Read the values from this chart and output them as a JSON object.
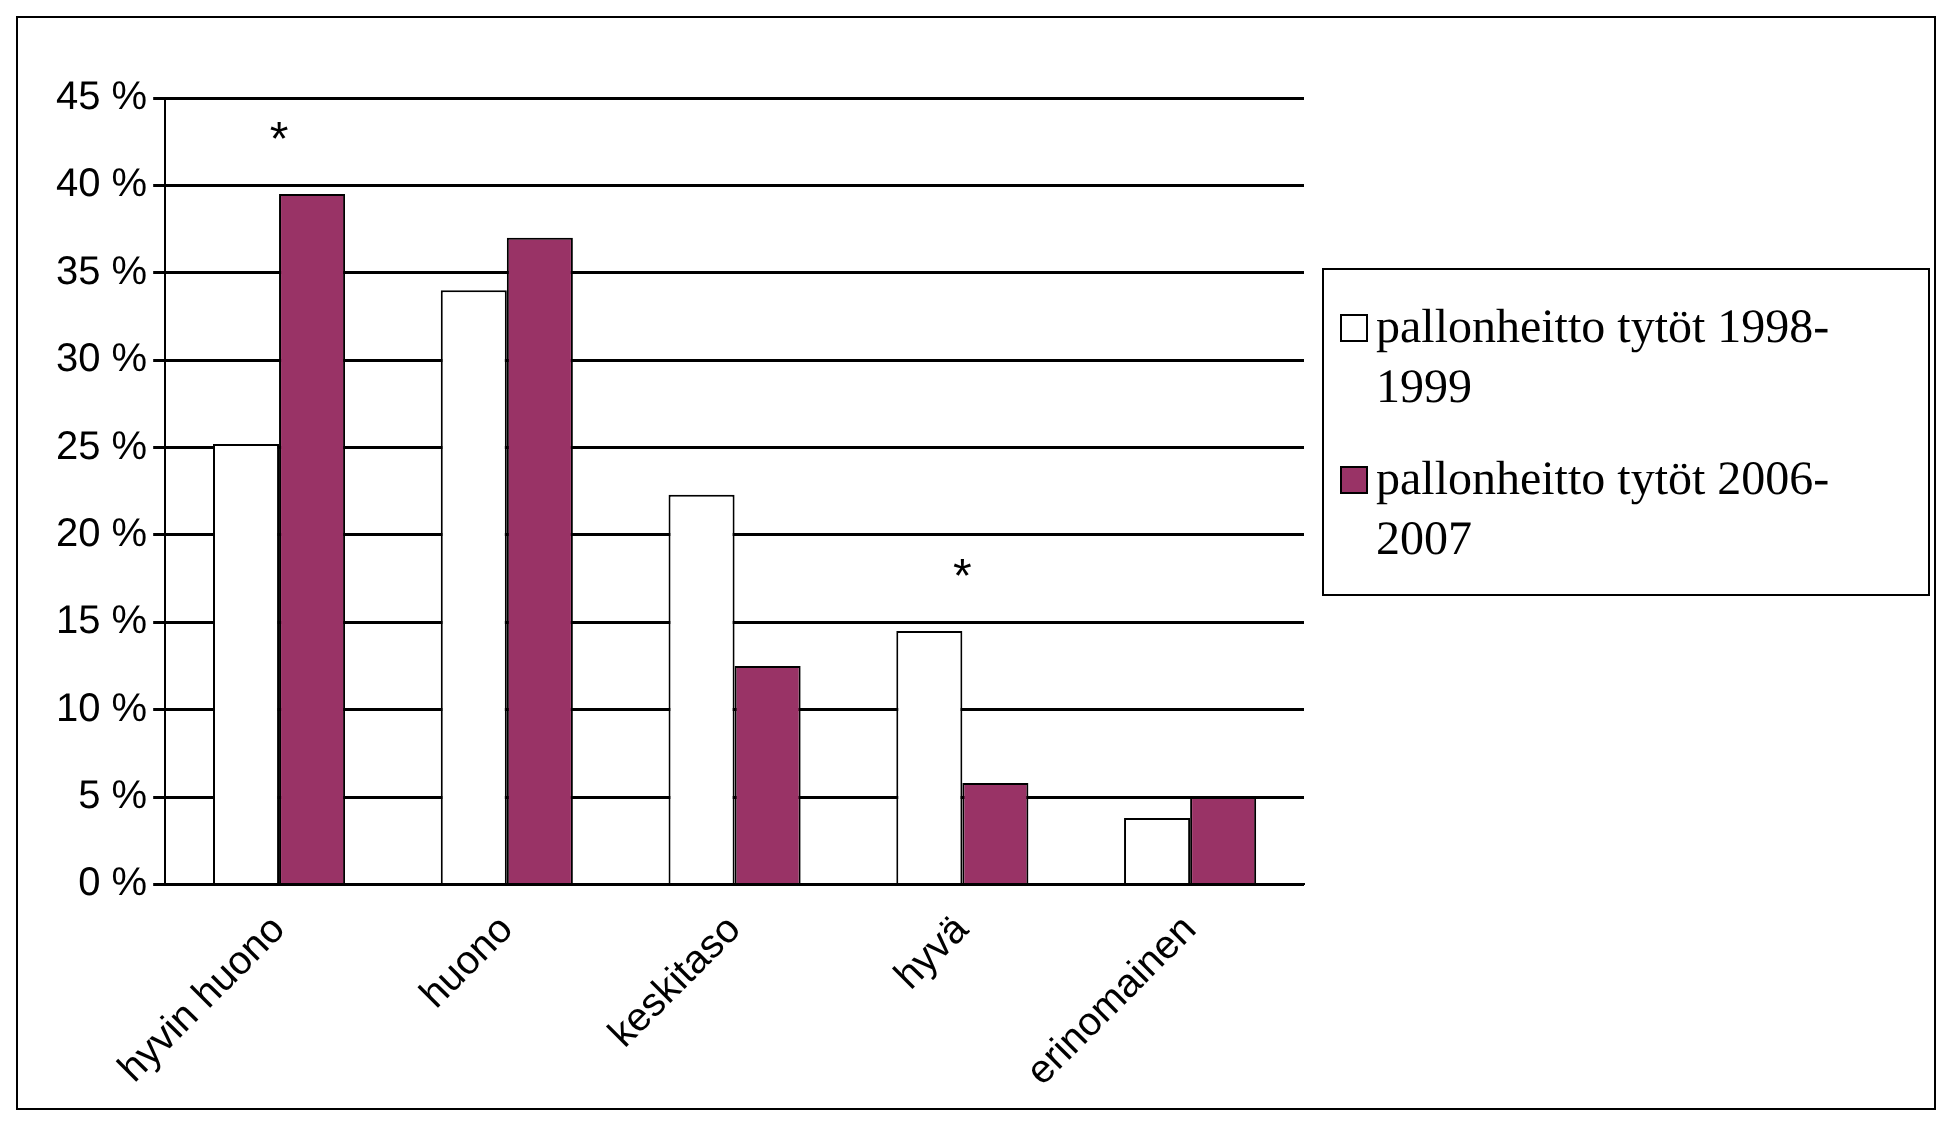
{
  "chart_data": {
    "type": "bar",
    "categories": [
      "hyvin huono",
      "huono",
      "keskitaso",
      "hyvä",
      "erinomainen"
    ],
    "series": [
      {
        "name": "pallonheitto tytöt 1998-1999",
        "color": "#ffffff",
        "values": [
          25.2,
          34,
          22.3,
          14.5,
          3.8
        ]
      },
      {
        "name": "pallonheitto tytöt 2006-2007",
        "color": "#993366",
        "values": [
          39.5,
          37,
          12.5,
          5.8,
          5.0
        ]
      }
    ],
    "ylim": [
      0,
      45
    ],
    "yticks": [
      {
        "value": 0,
        "label": "0 %"
      },
      {
        "value": 5,
        "label": "5 %"
      },
      {
        "value": 10,
        "label": "10 %"
      },
      {
        "value": 15,
        "label": "15 %"
      },
      {
        "value": 20,
        "label": "20 %"
      },
      {
        "value": 25,
        "label": "25 %"
      },
      {
        "value": 30,
        "label": "30 %"
      },
      {
        "value": 35,
        "label": "35 %"
      },
      {
        "value": 40,
        "label": "40 %"
      },
      {
        "value": 45,
        "label": "45 %"
      }
    ],
    "grid": "y",
    "legend": "right",
    "annotations": [
      {
        "text": "*",
        "x": "hyvin huono",
        "y": 39.5
      },
      {
        "text": "*",
        "x": "hyvä",
        "y": 14.5
      }
    ]
  }
}
